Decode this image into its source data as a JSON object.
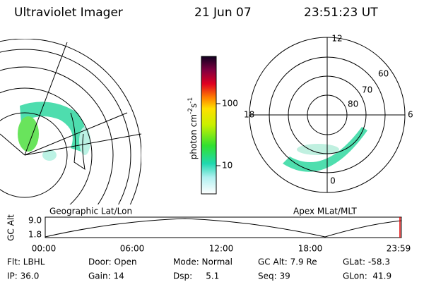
{
  "header": {
    "title": "Ultraviolet Imager",
    "date": "21 Jun 07",
    "time": "23:51:23 UT"
  },
  "left_panel": {
    "label": "Geographic Lat/Lon"
  },
  "right_panel": {
    "label": "Apex MLat/MLT",
    "mlt_labels": {
      "top": "12",
      "left": "18",
      "right": "6",
      "bottom": "0"
    },
    "lat_labels": [
      "60",
      "70",
      "80"
    ]
  },
  "colorbar": {
    "unit": [
      "photon cm",
      "-2",
      "s",
      "-1"
    ],
    "ticks": [
      "100",
      "10"
    ]
  },
  "altitude_plot": {
    "label": "GC Alt",
    "y_labels": [
      "9.0",
      "1.8"
    ],
    "x_labels": [
      "00:00",
      "06:00",
      "12:00",
      "18:00",
      "23:59"
    ]
  },
  "footer": {
    "rows": [
      [
        "Flt: LBHL",
        "Door: Open",
        "Mode: Normal",
        "GC Alt: 7.9 Re",
        "GLat: -58.3"
      ],
      [
        "IP: 36.0",
        "Gain: 14",
        "Dsp:     5.1",
        "Seq: 39",
        "GLon:  41.9"
      ]
    ]
  }
}
